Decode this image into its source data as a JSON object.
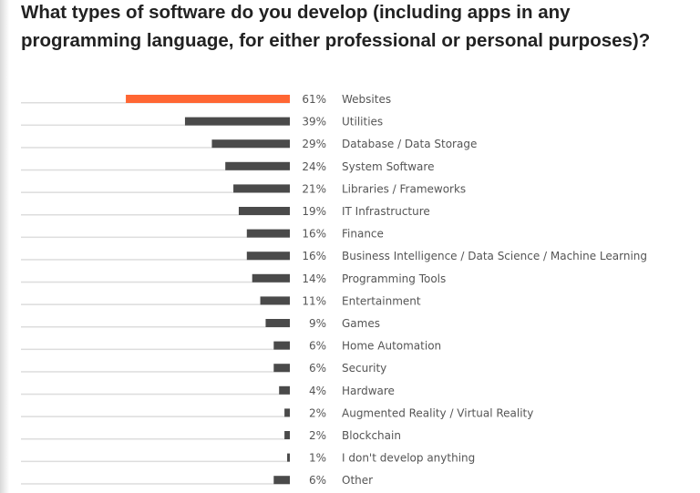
{
  "title": "What types of software do you develop (including apps in any programming language, for either professional or personal purposes)?",
  "colors": {
    "highlight": "#ff6633",
    "bar": "#4a4a4a",
    "track": "#dddddd",
    "text": "#555555"
  },
  "chart_data": {
    "type": "bar",
    "orientation": "horizontal",
    "title": "What types of software do you develop (including apps in any programming language, for either professional or personal purposes)?",
    "unit": "%",
    "xlim": [
      0,
      100
    ],
    "grid": false,
    "categories": [
      "Websites",
      "Utilities",
      "Database / Data Storage",
      "System Software",
      "Libraries / Frameworks",
      "IT Infrastructure",
      "Finance",
      "Business Intelligence / Data Science / Machine Learning",
      "Programming Tools",
      "Entertainment",
      "Games",
      "Home Automation",
      "Security",
      "Hardware",
      "Augmented Reality / Virtual Reality",
      "Blockchain",
      "I don't develop anything",
      "Other"
    ],
    "values": [
      61,
      39,
      29,
      24,
      21,
      19,
      16,
      16,
      14,
      11,
      9,
      6,
      6,
      4,
      2,
      2,
      1,
      6
    ],
    "value_labels": [
      "61%",
      "39%",
      "29%",
      "24%",
      "21%",
      "19%",
      "16%",
      "16%",
      "14%",
      "11%",
      "9%",
      "6%",
      "6%",
      "4%",
      "2%",
      "2%",
      "1%",
      "6%"
    ],
    "highlighted": "Websites"
  }
}
